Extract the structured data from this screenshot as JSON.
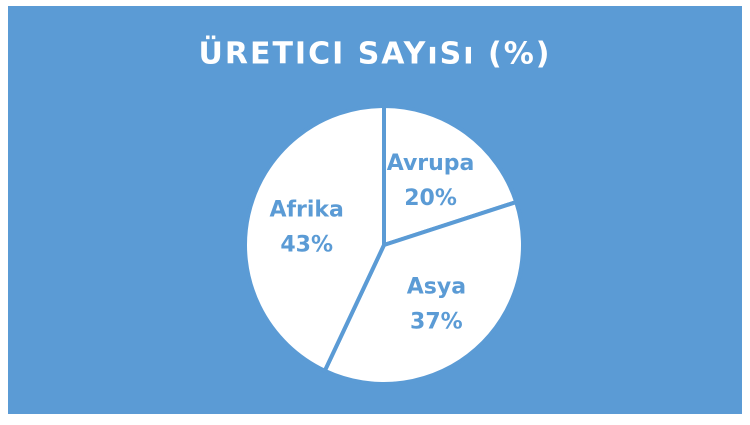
{
  "chart_data": {
    "type": "pie",
    "title": "ÜRETICI SAYıSı (%)",
    "categories": [
      "Avrupa",
      "Asya",
      "Afrika"
    ],
    "values": [
      20,
      37,
      43
    ],
    "value_labels": [
      "20%",
      "37%",
      "43%"
    ],
    "color": "#ffffff",
    "background": "#5b9bd5",
    "label_color": "#5b9bd5"
  }
}
